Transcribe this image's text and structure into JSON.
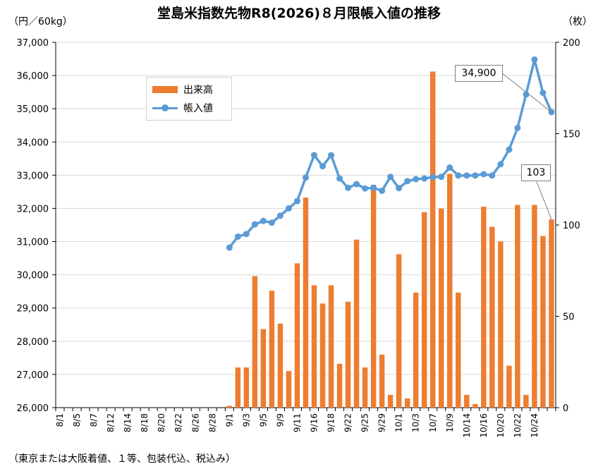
{
  "chart_data": {
    "type": "bar+line",
    "title": "堂島米指数先物R8(2026)８月限帳入値の推移",
    "ylabel_left": "（円／60kg）",
    "ylabel_right": "（枚）",
    "footnote": "（東京または大阪着値、１等、包装代込、税込み）",
    "ylim_left": [
      26000,
      37000
    ],
    "ylim_right": [
      0,
      200
    ],
    "left_ticks": [
      "26,000",
      "27,000",
      "28,000",
      "29,000",
      "30,000",
      "31,000",
      "32,000",
      "33,000",
      "34,000",
      "35,000",
      "36,000",
      "37,000"
    ],
    "right_ticks": [
      "0",
      "50",
      "100",
      "150",
      "200"
    ],
    "x_tick_labels": [
      "8/1",
      "8/5",
      "8/7",
      "8/12",
      "8/14",
      "8/18",
      "8/20",
      "8/22",
      "8/26",
      "8/28",
      "9/1",
      "9/3",
      "9/5",
      "9/9",
      "9/11",
      "9/16",
      "9/18",
      "9/22",
      "9/25",
      "9/29",
      "10/1",
      "10/3",
      "10/7",
      "10/9",
      "10/14",
      "10/16",
      "10/20",
      "10/22",
      "10/24"
    ],
    "series": [
      {
        "name": "出来高",
        "type": "bar",
        "axis": "right",
        "values": [
          0,
          0,
          0,
          0,
          0,
          0,
          0,
          0,
          0,
          0,
          0,
          0,
          0,
          0,
          0,
          0,
          0,
          0,
          0,
          0,
          1,
          22,
          22,
          72,
          43,
          64,
          46,
          20,
          79,
          115,
          67,
          57,
          67,
          24,
          58,
          92,
          22,
          122,
          29,
          7,
          84,
          5,
          63,
          107,
          184,
          109,
          128,
          63,
          7,
          2,
          110,
          99,
          91,
          23,
          111,
          7,
          111,
          94,
          103
        ]
      },
      {
        "name": "帳入値",
        "type": "line",
        "axis": "left",
        "values": [
          null,
          null,
          null,
          null,
          null,
          null,
          null,
          null,
          null,
          null,
          null,
          null,
          null,
          null,
          null,
          null,
          null,
          null,
          null,
          null,
          30820,
          31150,
          31230,
          31520,
          31620,
          31570,
          31780,
          32000,
          32220,
          32930,
          33600,
          33270,
          33600,
          32900,
          32620,
          32730,
          32600,
          32620,
          32530,
          32950,
          32610,
          32820,
          32880,
          32900,
          32940,
          32950,
          33230,
          32990,
          32990,
          32990,
          33030,
          32990,
          33330,
          33770,
          34420,
          35430,
          36480,
          35480,
          34900
        ]
      }
    ],
    "annotations": [
      "34,900",
      "103"
    ]
  }
}
